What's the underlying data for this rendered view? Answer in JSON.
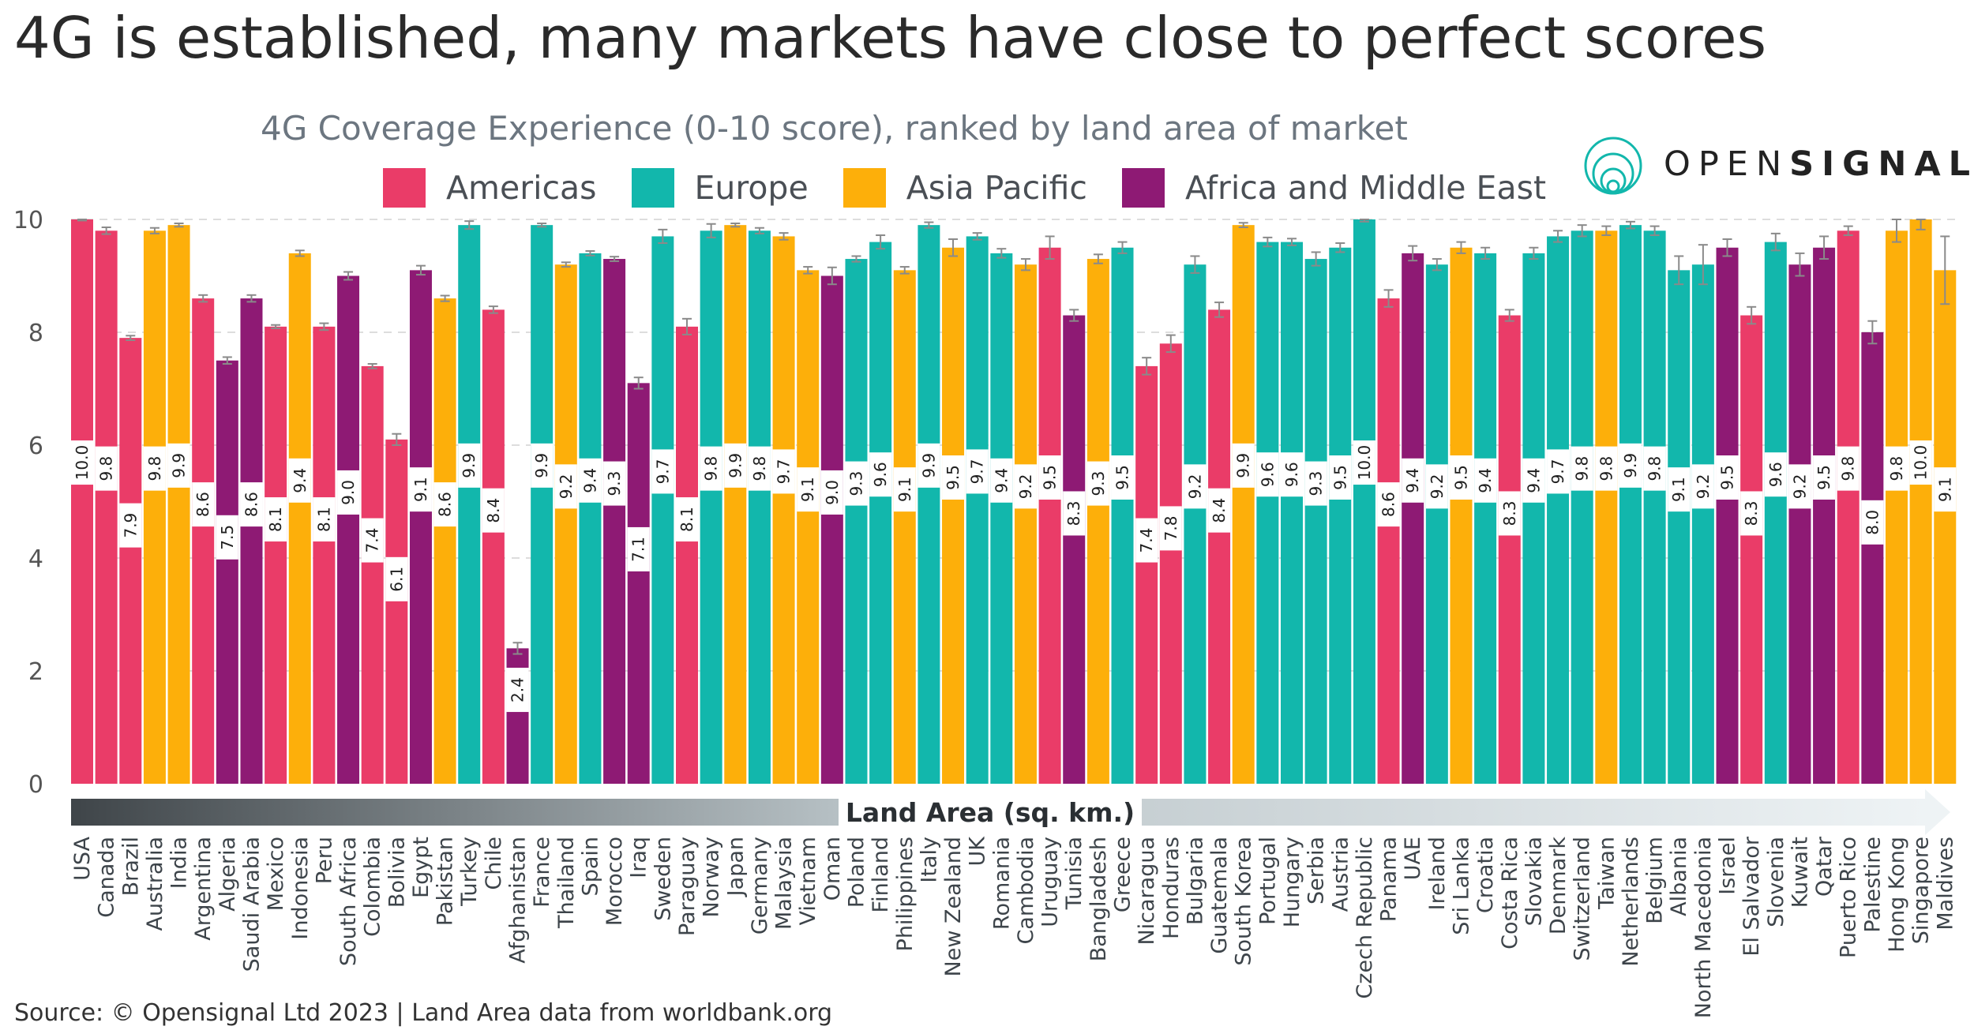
{
  "headline": "4G is established, many markets have close to perfect scores",
  "brand": {
    "light": "OPEN",
    "bold": "SIGNAL"
  },
  "source": "Source: © Opensignal Ltd 2023 | Land Area data from worldbank.org",
  "colors": {
    "Americas": "#ea3c68",
    "Europe": "#12b7ac",
    "Asia Pacific": "#fdaf0a",
    "Africa and Middle East": "#8e1a74"
  },
  "chart_data": {
    "type": "bar",
    "title": "4G Coverage Experience (0-10 score), ranked by land area of market",
    "xlabel": "Land Area (sq. km.)",
    "ylabel": "",
    "ylim": [
      0,
      10
    ],
    "yticks": [
      0,
      2,
      4,
      6,
      8,
      10
    ],
    "legend": [
      "Americas",
      "Europe",
      "Asia Pacific",
      "Africa and Middle East"
    ],
    "legend_position": "top",
    "categories": [
      "USA",
      "Canada",
      "Brazil",
      "Australia",
      "India",
      "Argentina",
      "Algeria",
      "Saudi Arabia",
      "Mexico",
      "Indonesia",
      "Peru",
      "South Africa",
      "Colombia",
      "Bolivia",
      "Egypt",
      "Pakistan",
      "Turkey",
      "Chile",
      "Afghanistan",
      "France",
      "Thailand",
      "Spain",
      "Morocco",
      "Iraq",
      "Sweden",
      "Paraguay",
      "Norway",
      "Japan",
      "Germany",
      "Malaysia",
      "Vietnam",
      "Oman",
      "Poland",
      "Finland",
      "Philippines",
      "Italy",
      "New Zealand",
      "UK",
      "Romania",
      "Cambodia",
      "Uruguay",
      "Tunisia",
      "Bangladesh",
      "Greece",
      "Nicaragua",
      "Honduras",
      "Bulgaria",
      "Guatemala",
      "South Korea",
      "Portugal",
      "Hungary",
      "Serbia",
      "Austria",
      "Czech Republic",
      "Panama",
      "UAE",
      "Ireland",
      "Sri Lanka",
      "Croatia",
      "Costa Rica",
      "Slovakia",
      "Denmark",
      "Switzerland",
      "Taiwan",
      "Netherlands",
      "Belgium",
      "Albania",
      "North Macedonia",
      "Israel",
      "El Salvador",
      "Slovenia",
      "Kuwait",
      "Qatar",
      "Puerto Rico",
      "Palestine",
      "Hong Kong",
      "Singapore",
      "Maldives"
    ],
    "values": [
      10.0,
      9.8,
      7.9,
      9.8,
      9.9,
      8.6,
      7.5,
      8.6,
      8.1,
      9.4,
      8.1,
      9.0,
      7.4,
      6.1,
      9.1,
      8.6,
      9.9,
      8.4,
      2.4,
      9.9,
      9.2,
      9.4,
      9.3,
      7.1,
      9.7,
      8.1,
      9.8,
      9.9,
      9.8,
      9.7,
      9.1,
      9.0,
      9.3,
      9.6,
      9.1,
      9.9,
      9.5,
      9.7,
      9.4,
      9.2,
      9.5,
      8.3,
      9.3,
      9.5,
      7.4,
      7.8,
      9.2,
      8.4,
      9.9,
      9.6,
      9.6,
      9.3,
      9.5,
      10.0,
      8.6,
      9.4,
      9.2,
      9.5,
      9.4,
      8.3,
      9.4,
      9.7,
      9.8,
      9.8,
      9.9,
      9.8,
      9.1,
      9.2,
      9.5,
      8.3,
      9.6,
      9.2,
      9.5,
      9.8,
      8.0,
      9.8,
      10.0,
      9.1
    ],
    "regions": [
      "Americas",
      "Americas",
      "Americas",
      "Asia Pacific",
      "Asia Pacific",
      "Americas",
      "Africa and Middle East",
      "Africa and Middle East",
      "Americas",
      "Asia Pacific",
      "Americas",
      "Africa and Middle East",
      "Americas",
      "Americas",
      "Africa and Middle East",
      "Asia Pacific",
      "Europe",
      "Americas",
      "Africa and Middle East",
      "Europe",
      "Asia Pacific",
      "Europe",
      "Africa and Middle East",
      "Africa and Middle East",
      "Europe",
      "Americas",
      "Europe",
      "Asia Pacific",
      "Europe",
      "Asia Pacific",
      "Asia Pacific",
      "Africa and Middle East",
      "Europe",
      "Europe",
      "Asia Pacific",
      "Europe",
      "Asia Pacific",
      "Europe",
      "Europe",
      "Asia Pacific",
      "Americas",
      "Africa and Middle East",
      "Asia Pacific",
      "Europe",
      "Americas",
      "Americas",
      "Europe",
      "Americas",
      "Asia Pacific",
      "Europe",
      "Europe",
      "Europe",
      "Europe",
      "Europe",
      "Americas",
      "Africa and Middle East",
      "Europe",
      "Asia Pacific",
      "Europe",
      "Americas",
      "Europe",
      "Europe",
      "Europe",
      "Asia Pacific",
      "Europe",
      "Europe",
      "Europe",
      "Europe",
      "Africa and Middle East",
      "Americas",
      "Europe",
      "Africa and Middle East",
      "Africa and Middle East",
      "Americas",
      "Africa and Middle East",
      "Asia Pacific",
      "Asia Pacific",
      "Asia Pacific"
    ],
    "error_margins": [
      0.02,
      0.06,
      0.04,
      0.05,
      0.03,
      0.06,
      0.06,
      0.06,
      0.03,
      0.05,
      0.06,
      0.07,
      0.04,
      0.1,
      0.08,
      0.05,
      0.07,
      0.06,
      0.1,
      0.03,
      0.04,
      0.04,
      0.04,
      0.1,
      0.12,
      0.14,
      0.12,
      0.03,
      0.05,
      0.06,
      0.06,
      0.15,
      0.05,
      0.12,
      0.06,
      0.05,
      0.15,
      0.06,
      0.08,
      0.1,
      0.2,
      0.1,
      0.08,
      0.1,
      0.15,
      0.15,
      0.15,
      0.13,
      0.04,
      0.08,
      0.06,
      0.12,
      0.08,
      0.04,
      0.15,
      0.13,
      0.1,
      0.1,
      0.1,
      0.1,
      0.1,
      0.1,
      0.1,
      0.08,
      0.06,
      0.08,
      0.25,
      0.35,
      0.15,
      0.15,
      0.15,
      0.2,
      0.2,
      0.08,
      0.2,
      0.2,
      0.18,
      0.6
    ]
  }
}
